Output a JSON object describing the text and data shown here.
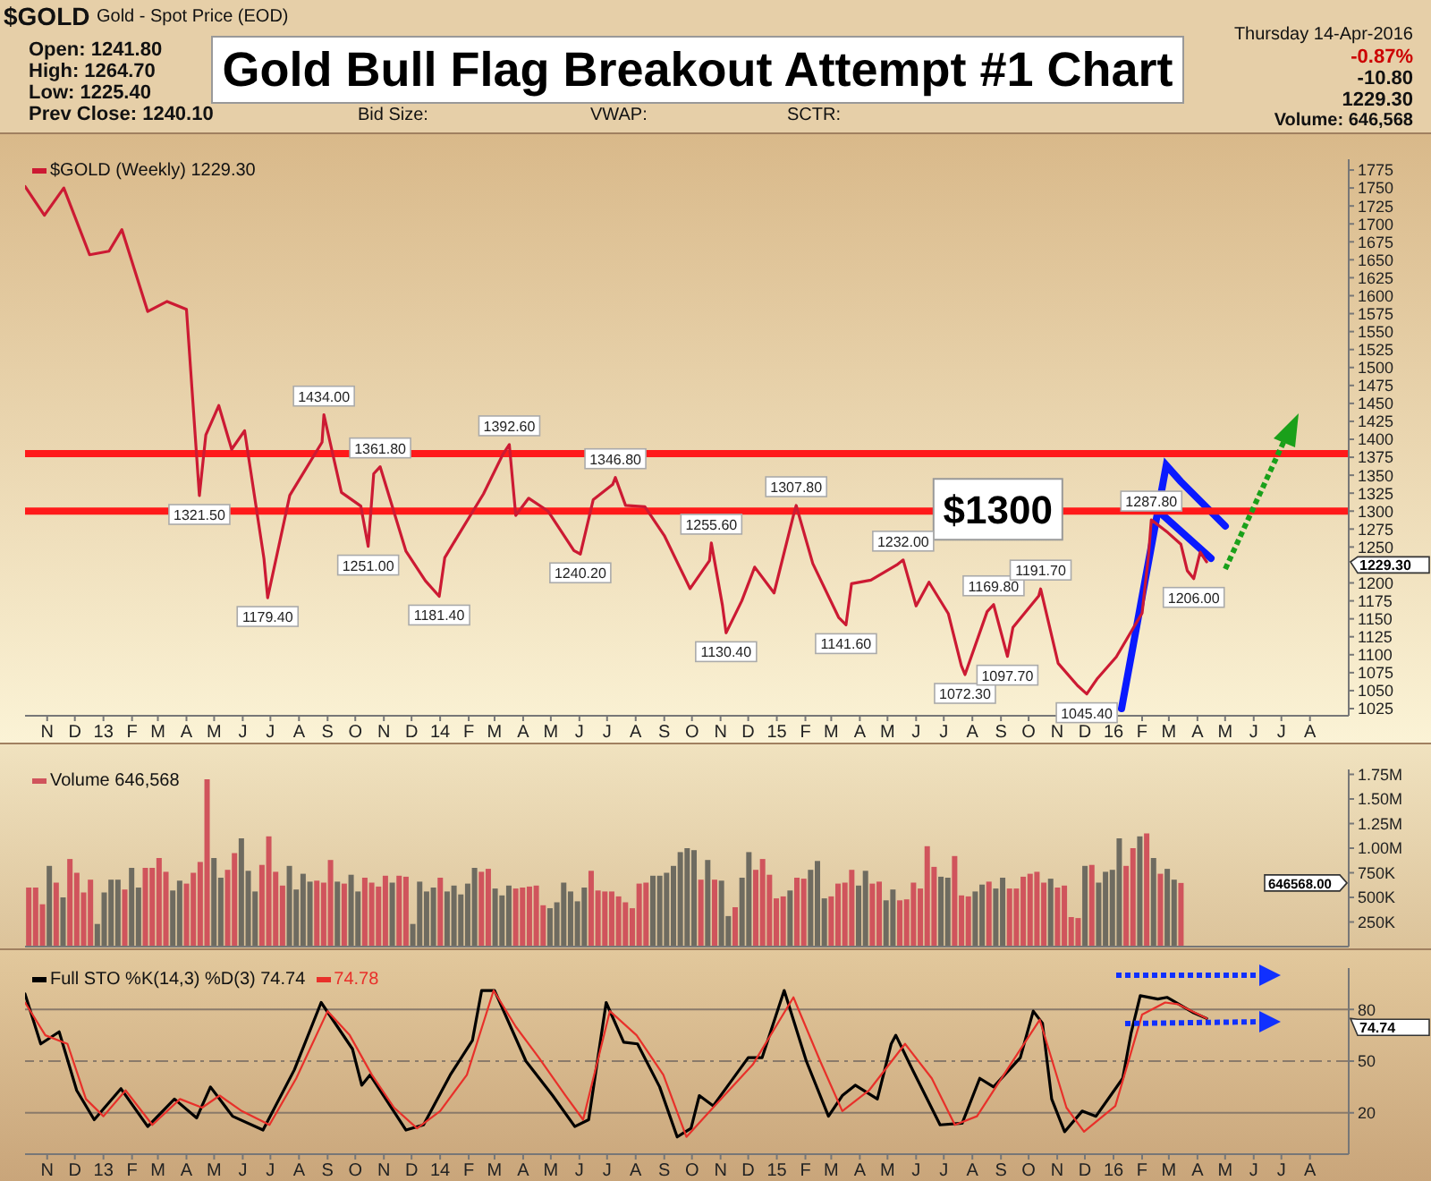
{
  "chart_data": [
    {
      "type": "line",
      "title": "Gold Bull Flag Breakout Attempt #1 Chart",
      "annotations": [
        "$GOLD",
        "Gold - Spot Price (EOD)",
        "Thursday 14-Apr-2016",
        "Open: 1241.80",
        "High: 1264.70",
        "Low: 1225.40",
        "Prev Close: 1240.10",
        "Bid Size:",
        "VWAP:",
        "SCTR:",
        "-0.87%",
        "-10.80",
        "1229.30",
        "Volume: 646,568",
        {
          "text": "1321.50",
          "x": "2013-04-15",
          "y": 1321.5
        },
        {
          "text": "1434.00",
          "x": "2013-08-28",
          "y": 1434
        },
        {
          "text": "1179.40",
          "x": "2013-06-28",
          "y": 1179.4
        },
        {
          "text": "1361.80",
          "x": "2013-10-28",
          "y": 1361.8
        },
        {
          "text": "1251.00",
          "x": "2013-10-15",
          "y": 1251
        },
        {
          "text": "1181.40",
          "x": "2013-12-31",
          "y": 1181.4
        },
        {
          "text": "1392.60",
          "x": "2014-03-17",
          "y": 1392.6
        },
        {
          "text": "1346.80",
          "x": "2014-07-10",
          "y": 1346.8
        },
        {
          "text": "1240.20",
          "x": "2014-06-02",
          "y": 1240.2
        },
        {
          "text": "1255.60",
          "x": "2014-10-22",
          "y": 1255.6
        },
        {
          "text": "1130.40",
          "x": "2014-11-07",
          "y": 1130.4
        },
        {
          "text": "1307.80",
          "x": "2015-01-22",
          "y": 1307.8
        },
        {
          "text": "1141.60",
          "x": "2015-03-17",
          "y": 1141.6
        },
        {
          "text": "1232.00",
          "x": "2015-05-18",
          "y": 1232
        },
        {
          "text": "1072.30",
          "x": "2015-07-24",
          "y": 1072.3
        },
        {
          "text": "1169.80",
          "x": "2015-08-24",
          "y": 1169.8
        },
        {
          "text": "1097.70",
          "x": "2015-09-08",
          "y": 1097.7
        },
        {
          "text": "1191.70",
          "x": "2015-10-14",
          "y": 1191.7
        },
        {
          "text": "1045.40",
          "x": "2015-12-03",
          "y": 1045.4
        },
        {
          "text": "1287.80",
          "x": "2016-02-11",
          "y": 1287.8
        },
        {
          "text": "1206.00",
          "x": "2016-03-28",
          "y": 1206
        },
        "1229.30"
      ],
      "x": [
        "2012-10-08",
        "2012-10-29",
        "2012-11-19",
        "2012-12-17",
        "2013-01-07",
        "2013-01-21",
        "2013-02-18",
        "2013-03-11",
        "2013-04-01",
        "2013-04-15",
        "2013-04-22",
        "2013-05-06",
        "2013-05-20",
        "2013-06-03",
        "2013-06-24",
        "2013-06-28",
        "2013-07-22",
        "2013-08-26",
        "2013-08-28",
        "2013-09-16",
        "2013-10-07",
        "2013-10-15",
        "2013-10-21",
        "2013-10-28",
        "2013-11-25",
        "2013-12-16",
        "2013-12-31",
        "2014-01-06",
        "2014-01-20",
        "2014-02-17",
        "2014-03-10",
        "2014-03-17",
        "2014-03-24",
        "2014-04-07",
        "2014-04-28",
        "2014-05-26",
        "2014-06-02",
        "2014-06-16",
        "2014-07-07",
        "2014-07-10",
        "2014-07-21",
        "2014-08-11",
        "2014-09-01",
        "2014-09-29",
        "2014-10-20",
        "2014-10-22",
        "2014-11-03",
        "2014-11-07",
        "2014-11-24",
        "2014-12-08",
        "2014-12-29",
        "2015-01-19",
        "2015-01-22",
        "2015-02-09",
        "2015-03-09",
        "2015-03-17",
        "2015-03-23",
        "2015-04-13",
        "2015-05-11",
        "2015-05-18",
        "2015-06-01",
        "2015-06-15",
        "2015-07-06",
        "2015-07-20",
        "2015-07-24",
        "2015-08-17",
        "2015-08-24",
        "2015-09-08",
        "2015-09-14",
        "2015-10-12",
        "2015-10-14",
        "2015-11-02",
        "2015-11-23",
        "2015-12-03",
        "2015-12-14",
        "2016-01-04",
        "2016-02-01",
        "2016-02-08",
        "2016-02-11",
        "2016-02-29",
        "2016-03-14",
        "2016-03-21",
        "2016-03-28",
        "2016-04-04",
        "2016-04-11"
      ],
      "series": [
        {
          "name": "$GOLD (Weekly) 1229.30",
          "color": "#cc1a33",
          "values": [
            1752,
            1712,
            1750,
            1657,
            1662,
            1692,
            1578,
            1592,
            1581,
            1321.5,
            1406,
            1447,
            1386,
            1412,
            1234,
            1179.4,
            1322,
            1396,
            1434,
            1326,
            1307,
            1251,
            1352,
            1361.8,
            1244,
            1203,
            1181.4,
            1235,
            1265,
            1324,
            1379,
            1392.6,
            1294,
            1318,
            1300,
            1245,
            1240.2,
            1316,
            1337,
            1346.8,
            1308,
            1306,
            1266,
            1192,
            1231,
            1255.6,
            1169,
            1130.4,
            1175,
            1222,
            1186,
            1294,
            1307.8,
            1227,
            1152,
            1141.6,
            1199,
            1204,
            1225,
            1232,
            1168,
            1201,
            1157,
            1085,
            1072.3,
            1160,
            1169.8,
            1097.7,
            1138,
            1182,
            1191.7,
            1088,
            1057,
            1045.4,
            1066,
            1097,
            1158,
            1239,
            1287.8,
            1270,
            1254,
            1217,
            1206,
            1243,
            1229.3
          ]
        }
      ],
      "xlim": [
        "2012-10-08",
        "2016-09-12"
      ],
      "xticks": [
        {
          "value": "2012-11-01",
          "label": "N"
        },
        {
          "value": "2012-12-01",
          "label": "D"
        },
        {
          "value": "2013-01-01",
          "label": "13"
        },
        {
          "value": "2013-02-01",
          "label": "F"
        },
        {
          "value": "2013-03-01",
          "label": "M"
        },
        {
          "value": "2013-04-01",
          "label": "A"
        },
        {
          "value": "2013-05-01",
          "label": "M"
        },
        {
          "value": "2013-06-01",
          "label": "J"
        },
        {
          "value": "2013-07-01",
          "label": "J"
        },
        {
          "value": "2013-08-01",
          "label": "A"
        },
        {
          "value": "2013-09-01",
          "label": "S"
        },
        {
          "value": "2013-10-01",
          "label": "O"
        },
        {
          "value": "2013-11-01",
          "label": "N"
        },
        {
          "value": "2013-12-01",
          "label": "D"
        },
        {
          "value": "2014-01-01",
          "label": "14"
        },
        {
          "value": "2014-02-01",
          "label": "F"
        },
        {
          "value": "2014-03-01",
          "label": "M"
        },
        {
          "value": "2014-04-01",
          "label": "A"
        },
        {
          "value": "2014-05-01",
          "label": "M"
        },
        {
          "value": "2014-06-01",
          "label": "J"
        },
        {
          "value": "2014-07-01",
          "label": "J"
        },
        {
          "value": "2014-08-01",
          "label": "A"
        },
        {
          "value": "2014-09-01",
          "label": "S"
        },
        {
          "value": "2014-10-01",
          "label": "O"
        },
        {
          "value": "2014-11-01",
          "label": "N"
        },
        {
          "value": "2014-12-01",
          "label": "D"
        },
        {
          "value": "2015-01-01",
          "label": "15"
        },
        {
          "value": "2015-02-01",
          "label": "F"
        },
        {
          "value": "2015-03-01",
          "label": "M"
        },
        {
          "value": "2015-04-01",
          "label": "A"
        },
        {
          "value": "2015-05-01",
          "label": "M"
        },
        {
          "value": "2015-06-01",
          "label": "J"
        },
        {
          "value": "2015-07-01",
          "label": "J"
        },
        {
          "value": "2015-08-01",
          "label": "A"
        },
        {
          "value": "2015-09-01",
          "label": "S"
        },
        {
          "value": "2015-10-01",
          "label": "O"
        },
        {
          "value": "2015-11-01",
          "label": "N"
        },
        {
          "value": "2015-12-01",
          "label": "D"
        },
        {
          "value": "2016-01-01",
          "label": "16"
        },
        {
          "value": "2016-02-01",
          "label": "F"
        },
        {
          "value": "2016-03-01",
          "label": "M"
        },
        {
          "value": "2016-04-01",
          "label": "A"
        },
        {
          "value": "2016-05-01",
          "label": "M"
        },
        {
          "value": "2016-06-01",
          "label": "J"
        },
        {
          "value": "2016-07-01",
          "label": "J"
        },
        {
          "value": "2016-08-01",
          "label": "A"
        }
      ],
      "ylim": [
        1015,
        1790
      ],
      "yticks": [
        1025,
        1050,
        1075,
        1100,
        1125,
        1150,
        1175,
        1200,
        1250,
        1275,
        1300,
        1325,
        1350,
        1375,
        1400,
        1425,
        1450,
        1475,
        1500,
        1525,
        1550,
        1575,
        1600,
        1625,
        1650,
        1675,
        1700,
        1725,
        1750,
        1775
      ],
      "ref_lines": [
        {
          "axis": "y",
          "value": 1380,
          "color": "#ff1a1a"
        },
        {
          "axis": "y",
          "value": 1300,
          "label": "$1300",
          "color": "#ff1a1a"
        }
      ],
      "legend": "top left"
    },
    {
      "type": "bar",
      "categories": [
        null,
        null,
        null,
        null,
        null,
        null,
        null,
        null,
        null,
        null,
        null,
        null,
        null,
        null,
        null,
        null,
        null,
        null,
        null,
        null,
        null,
        null,
        null,
        null,
        null,
        null,
        null,
        null,
        null,
        null,
        null,
        null,
        null,
        null,
        null,
        null,
        null,
        null,
        null,
        null,
        null,
        null,
        null,
        null,
        null,
        null,
        null,
        null,
        null,
        null,
        null,
        null,
        null,
        null,
        null,
        null,
        null,
        null,
        null,
        null,
        null,
        null,
        null,
        null,
        null,
        null,
        null,
        null,
        null,
        null,
        null,
        null,
        null,
        null,
        null,
        null,
        null,
        null,
        null,
        null,
        null,
        null,
        null,
        null,
        null,
        null,
        null,
        null,
        null,
        null,
        null,
        null,
        null,
        null,
        null,
        null,
        null,
        null,
        null,
        null,
        null,
        null,
        null,
        null,
        null,
        null,
        null,
        null,
        null,
        null,
        null,
        null,
        null,
        null,
        null,
        null,
        null,
        null,
        null,
        null,
        null,
        null,
        null,
        null,
        null,
        null,
        null,
        null,
        null,
        null,
        null,
        null,
        null,
        null,
        null,
        null,
        null,
        null,
        null,
        null,
        null,
        null,
        null,
        null,
        null,
        null,
        null,
        null,
        null,
        null,
        null,
        null,
        null,
        null,
        null,
        null,
        null,
        null,
        null,
        null,
        null,
        null,
        null,
        null,
        null,
        null,
        null,
        null,
        null,
        null,
        null,
        null,
        null,
        null,
        null,
        null,
        null,
        null,
        null,
        null,
        null,
        null,
        null,
        null,
        null,
        null,
        null,
        null,
        null,
        null,
        null,
        null,
        null
      ],
      "series": [
        {
          "name": "Volume 646,568",
          "values": [
            600000,
            600000,
            430000,
            820000,
            650000,
            500000,
            890000,
            750000,
            550000,
            680000,
            230000,
            550000,
            680000,
            680000,
            580000,
            800000,
            600000,
            800000,
            800000,
            900000,
            760000,
            570000,
            670000,
            640000,
            750000,
            860000,
            1700000,
            900000,
            700000,
            780000,
            950000,
            1100000,
            770000,
            560000,
            830000,
            1120000,
            760000,
            620000,
            820000,
            580000,
            740000,
            660000,
            670000,
            650000,
            880000,
            660000,
            640000,
            730000,
            560000,
            700000,
            650000,
            610000,
            720000,
            650000,
            720000,
            710000,
            230000,
            660000,
            560000,
            600000,
            700000,
            560000,
            620000,
            530000,
            640000,
            800000,
            760000,
            790000,
            590000,
            520000,
            620000,
            590000,
            600000,
            610000,
            620000,
            420000,
            390000,
            450000,
            650000,
            560000,
            460000,
            600000,
            770000,
            570000,
            560000,
            560000,
            510000,
            450000,
            390000,
            640000,
            650000,
            720000,
            720000,
            750000,
            820000,
            960000,
            1000000,
            980000,
            680000,
            880000,
            680000,
            670000,
            310000,
            400000,
            700000,
            960000,
            780000,
            890000,
            730000,
            490000,
            510000,
            570000,
            700000,
            690000,
            780000,
            870000,
            490000,
            510000,
            640000,
            650000,
            780000,
            620000,
            770000,
            640000,
            660000,
            470000,
            580000,
            470000,
            480000,
            650000,
            590000,
            1020000,
            810000,
            710000,
            700000,
            920000,
            520000,
            510000,
            560000,
            630000,
            660000,
            590000,
            700000,
            590000,
            590000,
            710000,
            740000,
            760000,
            650000,
            690000,
            600000,
            620000,
            300000,
            290000,
            820000,
            830000,
            650000,
            760000,
            780000,
            1100000,
            820000,
            1000000,
            1120000,
            1150000,
            900000,
            740000,
            790000,
            680000,
            646568,
            null,
            null,
            null,
            null,
            null,
            null,
            null,
            null,
            null,
            null,
            null,
            null,
            null,
            null,
            null,
            null,
            null,
            null,
            null,
            null,
            null,
            null,
            null,
            null
          ],
          "colors": [
            "#d0545c",
            "#d0545c",
            "#d0545c",
            "#6e6b60",
            "#d0545c",
            "#6e6b60",
            "#d0545c",
            "#d0545c",
            "#d0545c",
            "#d0545c",
            "#6e6b60",
            "#6e6b60",
            "#6e6b60",
            "#6e6b60",
            "#d0545c",
            "#6e6b60",
            "#6e6b60",
            "#d0545c",
            "#d0545c",
            "#d0545c",
            "#d0545c",
            "#6e6b60",
            "#6e6b60",
            "#d0545c",
            "#d0545c",
            "#d0545c",
            "#d0545c",
            "#6e6b60",
            "#6e6b60",
            "#d0545c",
            "#d0545c",
            "#6e6b60",
            "#6e6b60",
            "#6e6b60",
            "#d0545c",
            "#d0545c",
            "#d0545c",
            "#d0545c",
            "#6e6b60",
            "#6e6b60",
            "#6e6b60",
            "#6e6b60",
            "#d0545c",
            "#d0545c",
            "#d0545c",
            "#6e6b60",
            "#d0545c",
            "#6e6b60",
            "#6e6b60",
            "#d0545c",
            "#d0545c",
            "#d0545c",
            "#d0545c",
            "#6e6b60",
            "#d0545c",
            "#d0545c",
            "#6e6b60",
            "#6e6b60",
            "#6e6b60",
            "#6e6b60",
            "#d0545c",
            "#6e6b60",
            "#6e6b60",
            "#6e6b60",
            "#6e6b60",
            "#6e6b60",
            "#d0545c",
            "#d0545c",
            "#6e6b60",
            "#6e6b60",
            "#6e6b60",
            "#d0545c",
            "#d0545c",
            "#d0545c",
            "#d0545c",
            "#d0545c",
            "#6e6b60",
            "#6e6b60",
            "#6e6b60",
            "#6e6b60",
            "#6e6b60",
            "#6e6b60",
            "#d0545c",
            "#d0545c",
            "#d0545c",
            "#d0545c",
            "#d0545c",
            "#d0545c",
            "#d0545c",
            "#d0545c",
            "#d0545c",
            "#6e6b60",
            "#6e6b60",
            "#6e6b60",
            "#6e6b60",
            "#6e6b60",
            "#6e6b60",
            "#6e6b60",
            "#d0545c",
            "#6e6b60",
            "#d0545c",
            "#6e6b60",
            "#6e6b60",
            "#d0545c",
            "#6e6b60",
            "#6e6b60",
            "#d0545c",
            "#d0545c",
            "#d0545c",
            "#d0545c",
            "#d0545c",
            "#6e6b60",
            "#d0545c",
            "#d0545c",
            "#6e6b60",
            "#6e6b60",
            "#6e6b60",
            "#d0545c",
            "#d0545c",
            "#d0545c",
            "#d0545c",
            "#6e6b60",
            "#6e6b60",
            "#d0545c",
            "#d0545c",
            "#6e6b60",
            "#6e6b60",
            "#d0545c",
            "#d0545c",
            "#d0545c",
            "#d0545c",
            "#d0545c",
            "#d0545c",
            "#6e6b60",
            "#6e6b60",
            "#d0545c",
            "#d0545c",
            "#d0545c",
            "#6e6b60",
            "#6e6b60",
            "#d0545c",
            "#6e6b60",
            "#6e6b60",
            "#d0545c",
            "#d0545c",
            "#d0545c",
            "#d0545c",
            "#d0545c",
            "#d0545c",
            "#6e6b60",
            "#d0545c",
            "#d0545c",
            "#d0545c",
            "#d0545c",
            "#6e6b60",
            "#d0545c",
            "#6e6b60",
            "#6e6b60",
            "#6e6b60",
            "#6e6b60",
            "#d0545c",
            "#d0545c",
            "#6e6b60",
            "#d0545c",
            "#6e6b60",
            "#d0545c",
            "#6e6b60",
            "#6e6b60",
            "#d0545c",
            null,
            null,
            null,
            null,
            null,
            null,
            null,
            null,
            null,
            null,
            null,
            null,
            null,
            null,
            null,
            null,
            null,
            null,
            null,
            null,
            null,
            null,
            null,
            null
          ]
        }
      ],
      "ylim": [
        0,
        1800000
      ],
      "yticks": [
        {
          "value": 250000,
          "label": "250K"
        },
        {
          "value": 500000,
          "label": "500K"
        },
        {
          "value": 750000,
          "label": "750K"
        },
        {
          "value": 1000000,
          "label": "1.00M"
        },
        {
          "value": 1250000,
          "label": "1.25M"
        },
        {
          "value": 1500000,
          "label": "1.50M"
        },
        {
          "value": 1750000,
          "label": "1.75M"
        }
      ],
      "tick_labels": "y",
      "legend": "top left",
      "annotations": [
        "646568.00"
      ]
    },
    {
      "type": "line",
      "series": [
        {
          "name": "Full STO %K(14,3) %D(3) 74.74",
          "color": "#000000",
          "x": [
            "2012-10-08",
            "2012-10-25",
            "2012-11-14",
            "2012-12-03",
            "2012-12-22",
            "2013-01-20",
            "2013-02-18",
            "2013-03-19",
            "2013-04-12",
            "2013-04-27",
            "2013-05-21",
            "2013-06-23",
            "2013-07-27",
            "2013-08-25",
            "2013-09-28",
            "2013-10-08",
            "2013-10-17",
            "2013-11-25",
            "2013-12-14",
            "2014-01-12",
            "2014-02-05",
            "2014-02-15",
            "2014-03-01",
            "2014-04-04",
            "2014-05-03",
            "2014-05-27",
            "2014-06-11",
            "2014-06-30",
            "2014-07-19",
            "2014-08-03",
            "2014-08-27",
            "2014-09-15",
            "2014-09-30",
            "2014-10-09",
            "2014-10-24",
            "2014-12-01",
            "2014-12-16",
            "2015-01-09",
            "2015-02-02",
            "2015-02-26",
            "2015-03-13",
            "2015-03-27",
            "2015-04-20",
            "2015-05-05",
            "2015-05-10",
            "2015-05-29",
            "2015-06-27",
            "2015-07-21",
            "2015-08-09",
            "2015-08-24",
            "2015-09-22",
            "2015-10-06",
            "2015-10-16",
            "2015-10-26",
            "2015-11-09",
            "2015-11-28",
            "2015-12-13",
            "2016-01-11",
            "2016-01-20",
            "2016-01-30",
            "2016-02-18",
            "2016-02-28",
            "2016-03-28",
            "2016-04-11"
          ],
          "values": [
            89,
            60,
            67,
            33,
            16,
            34,
            12,
            28,
            17,
            35,
            18,
            10,
            45,
            84,
            57,
            36,
            42,
            10,
            13,
            42,
            62,
            91,
            91,
            50,
            30,
            12,
            16,
            84,
            61,
            60,
            35,
            6,
            11,
            30,
            24,
            52,
            52,
            91,
            50,
            18,
            30,
            36,
            28,
            60,
            65,
            44,
            13,
            14,
            40,
            35,
            52,
            79,
            72,
            28,
            9,
            21,
            18,
            40,
            66,
            88,
            86,
            87,
            78,
            74.74
          ]
        },
        {
          "name": "74.78",
          "color": "#e8302a",
          "x": [
            "2012-10-08",
            "2012-10-30",
            "2012-11-23",
            "2012-12-13",
            "2013-01-01",
            "2013-01-25",
            "2013-02-23",
            "2013-03-25",
            "2013-04-18",
            "2013-05-07",
            "2013-05-31",
            "2013-06-30",
            "2013-07-29",
            "2013-09-01",
            "2013-09-25",
            "2013-10-19",
            "2013-11-12",
            "2013-12-07",
            "2014-01-01",
            "2014-01-30",
            "2014-02-28",
            "2014-03-24",
            "2014-04-18",
            "2014-05-17",
            "2014-06-05",
            "2014-07-04",
            "2014-08-02",
            "2014-08-31",
            "2014-09-25",
            "2014-10-29",
            "2014-12-06",
            "2015-01-19",
            "2015-02-17",
            "2015-03-13",
            "2015-04-11",
            "2015-05-20",
            "2015-06-18",
            "2015-07-13",
            "2015-08-06",
            "2015-09-04",
            "2015-10-13",
            "2015-11-11",
            "2015-11-30",
            "2016-01-03",
            "2016-02-01",
            "2016-02-26",
            "2016-03-11",
            "2016-04-11"
          ],
          "values": [
            84,
            65,
            60,
            28,
            18,
            33,
            13,
            28,
            23,
            30,
            21,
            13,
            40,
            79,
            65,
            42,
            23,
            11,
            21,
            42,
            91,
            70,
            52,
            30,
            16,
            79,
            65,
            42,
            6,
            26,
            48,
            87,
            50,
            21,
            33,
            60,
            40,
            13,
            18,
            42,
            74,
            23,
            9,
            24,
            77,
            84,
            83,
            74.78
          ]
        }
      ],
      "xlim": [
        "2012-10-08",
        "2016-09-12"
      ],
      "xticks": [
        {
          "value": "2012-11-01",
          "label": "N"
        },
        {
          "value": "2012-12-01",
          "label": "D"
        },
        {
          "value": "2013-01-01",
          "label": "13"
        },
        {
          "value": "2013-02-01",
          "label": "F"
        },
        {
          "value": "2013-03-01",
          "label": "M"
        },
        {
          "value": "2013-04-01",
          "label": "A"
        },
        {
          "value": "2013-05-01",
          "label": "M"
        },
        {
          "value": "2013-06-01",
          "label": "J"
        },
        {
          "value": "2013-07-01",
          "label": "J"
        },
        {
          "value": "2013-08-01",
          "label": "A"
        },
        {
          "value": "2013-09-01",
          "label": "S"
        },
        {
          "value": "2013-10-01",
          "label": "O"
        },
        {
          "value": "2013-11-01",
          "label": "N"
        },
        {
          "value": "2013-12-01",
          "label": "D"
        },
        {
          "value": "2014-01-01",
          "label": "14"
        },
        {
          "value": "2014-02-01",
          "label": "F"
        },
        {
          "value": "2014-03-01",
          "label": "M"
        },
        {
          "value": "2014-04-01",
          "label": "A"
        },
        {
          "value": "2014-05-01",
          "label": "M"
        },
        {
          "value": "2014-06-01",
          "label": "J"
        },
        {
          "value": "2014-07-01",
          "label": "J"
        },
        {
          "value": "2014-08-01",
          "label": "A"
        },
        {
          "value": "2014-09-01",
          "label": "S"
        },
        {
          "value": "2014-10-01",
          "label": "O"
        },
        {
          "value": "2014-11-01",
          "label": "N"
        },
        {
          "value": "2014-12-01",
          "label": "D"
        },
        {
          "value": "2015-01-01",
          "label": "15"
        },
        {
          "value": "2015-02-01",
          "label": "F"
        },
        {
          "value": "2015-03-01",
          "label": "M"
        },
        {
          "value": "2015-04-01",
          "label": "A"
        },
        {
          "value": "2015-05-01",
          "label": "M"
        },
        {
          "value": "2015-06-01",
          "label": "J"
        },
        {
          "value": "2015-07-01",
          "label": "J"
        },
        {
          "value": "2015-08-01",
          "label": "A"
        },
        {
          "value": "2015-09-01",
          "label": "S"
        },
        {
          "value": "2015-10-01",
          "label": "O"
        },
        {
          "value": "2015-11-01",
          "label": "N"
        },
        {
          "value": "2015-12-01",
          "label": "D"
        },
        {
          "value": "2016-01-01",
          "label": "16"
        },
        {
          "value": "2016-02-01",
          "label": "F"
        },
        {
          "value": "2016-03-01",
          "label": "M"
        },
        {
          "value": "2016-04-01",
          "label": "A"
        },
        {
          "value": "2016-05-01",
          "label": "M"
        },
        {
          "value": "2016-06-01",
          "label": "J"
        },
        {
          "value": "2016-07-01",
          "label": "J"
        },
        {
          "value": "2016-08-01",
          "label": "A"
        }
      ],
      "ylim": [
        -4,
        104
      ],
      "yticks": [
        20,
        50,
        80
      ],
      "ref_lines": [
        {
          "axis": "y",
          "value": 80,
          "color": "#8a7a6a"
        },
        {
          "axis": "y",
          "value": 50,
          "color": "#8a7a6a",
          "line_style": "dashed"
        },
        {
          "axis": "y",
          "value": 20,
          "color": "#8a7a6a"
        }
      ],
      "legend": "top left",
      "annotations": [
        "74.74"
      ]
    }
  ]
}
